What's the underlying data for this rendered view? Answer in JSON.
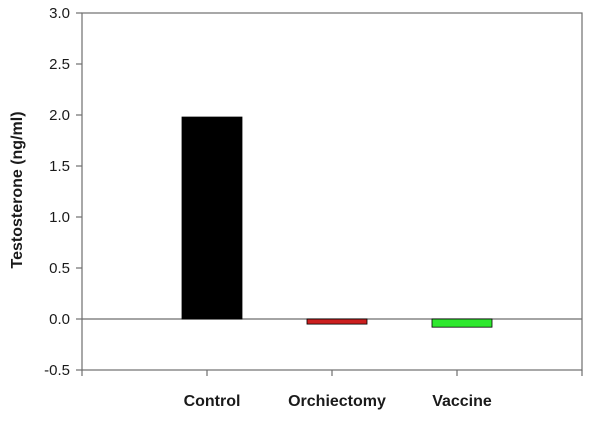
{
  "chart_data": {
    "type": "bar",
    "title": "",
    "xlabel": "",
    "ylabel": "Testosterone (ng/ml)",
    "categories": [
      "Control",
      "Orchiectomy",
      "Vaccine"
    ],
    "values": [
      1.98,
      -0.05,
      -0.08
    ],
    "ylim": [
      -0.5,
      3.0
    ],
    "yticks": [
      "-0.5",
      "0.0",
      "0.5",
      "1.0",
      "1.5",
      "2.0",
      "2.5",
      "3.0"
    ],
    "colors": [
      "#000000",
      "#cc1f1f",
      "#2ee82e"
    ],
    "grid": false,
    "legend": "none"
  }
}
